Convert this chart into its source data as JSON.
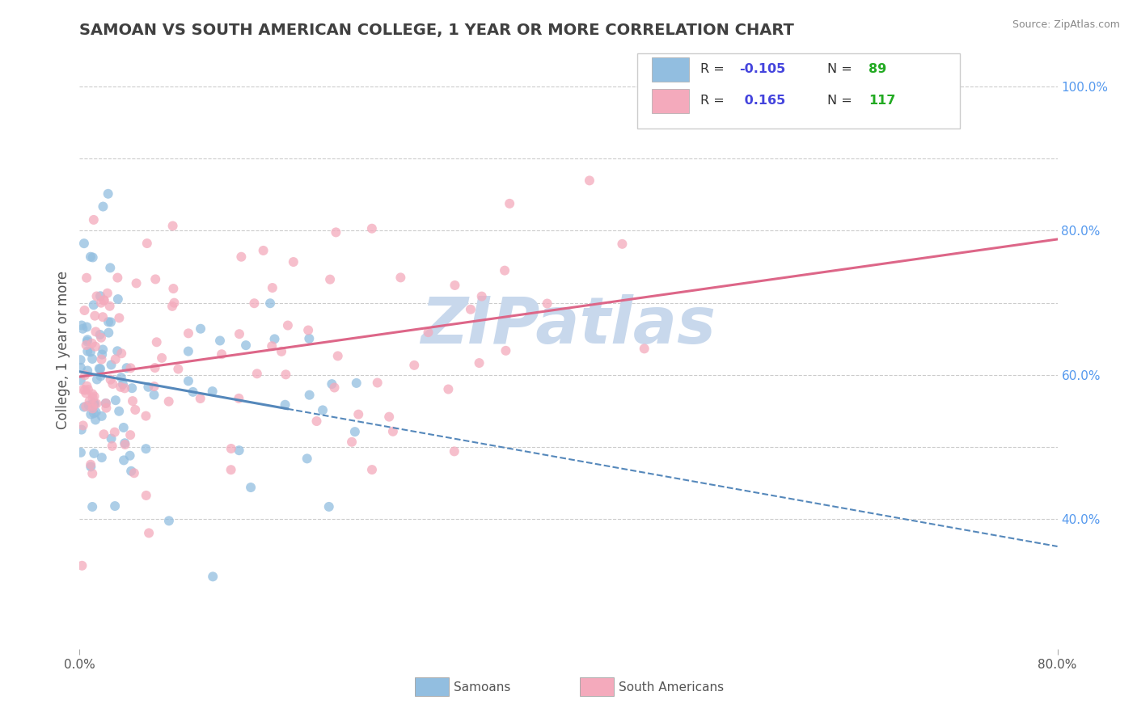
{
  "title": "SAMOAN VS SOUTH AMERICAN COLLEGE, 1 YEAR OR MORE CORRELATION CHART",
  "source": "Source: ZipAtlas.com",
  "ylabel": "College, 1 year or more",
  "xlim": [
    0.0,
    0.8
  ],
  "ylim": [
    0.22,
    1.05
  ],
  "ytick_labels_right": [
    "40.0%",
    "",
    "60.0%",
    "",
    "80.0%",
    "",
    "100.0%"
  ],
  "yticks_right": [
    0.4,
    0.5,
    0.6,
    0.7,
    0.8,
    0.9,
    1.0
  ],
  "blue_color": "#92BEE0",
  "pink_color": "#F4AABC",
  "blue_line_color": "#5588BB",
  "pink_line_color": "#DD6688",
  "R_blue": -0.105,
  "N_blue": 89,
  "R_pink": 0.165,
  "N_pink": 117,
  "legend_R_color": "#4444DD",
  "legend_N_color": "#22AA22",
  "watermark": "ZIPatlas",
  "watermark_color": "#C8D8EC",
  "background_color": "#FFFFFF",
  "grid_color": "#CCCCCC",
  "title_color": "#404040",
  "title_fontsize": 14,
  "axis_tick_color": "#5599EE"
}
